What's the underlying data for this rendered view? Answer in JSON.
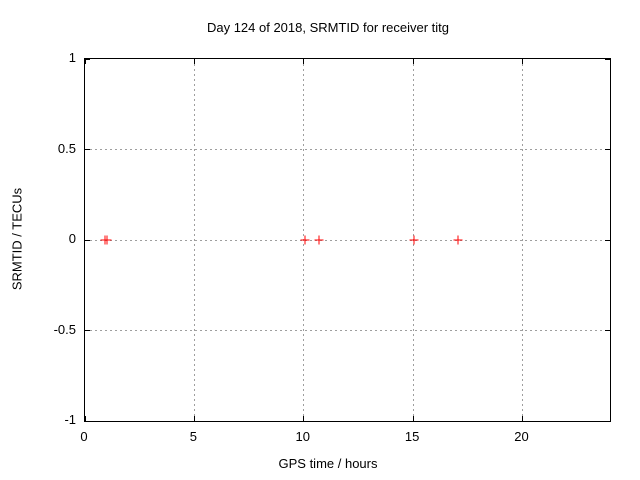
{
  "page": {
    "background": "#ffffff"
  },
  "chart_data": {
    "type": "scatter",
    "title": "Day 124 of 2018, SRMTID for receiver titg",
    "xlabel": "GPS time / hours",
    "ylabel": "SRMTID / TECUs",
    "xlim": [
      0,
      24
    ],
    "ylim": [
      -1,
      1
    ],
    "xticks": {
      "values": [
        0,
        5,
        10,
        15,
        20
      ],
      "labels": [
        "0",
        "5",
        "10",
        "15",
        "20"
      ]
    },
    "yticks": {
      "values": [
        1,
        0.5,
        0,
        -0.5,
        -1
      ],
      "labels": [
        "1",
        "0.5",
        "0",
        "-0.5",
        "-1"
      ]
    },
    "xgrid": [
      5,
      10,
      15,
      20
    ],
    "ygrid": [
      0.5,
      0,
      -0.5
    ],
    "grid": true,
    "grid_style": "dotted",
    "legend": "none",
    "series": [
      {
        "name": "SRMTID",
        "marker": "plus",
        "color": "#ff0000",
        "points": [
          {
            "x": 0.9,
            "y": 0
          },
          {
            "x": 1.0,
            "y": 0
          },
          {
            "x": 10.05,
            "y": 0
          },
          {
            "x": 10.7,
            "y": 0
          },
          {
            "x": 15.05,
            "y": 0
          },
          {
            "x": 17.05,
            "y": 0
          }
        ]
      }
    ],
    "colors": {
      "axis": "#000000",
      "text": "#000000",
      "grid": "#9e9e9e",
      "marker": "#ff0000",
      "background": "#ffffff"
    }
  }
}
